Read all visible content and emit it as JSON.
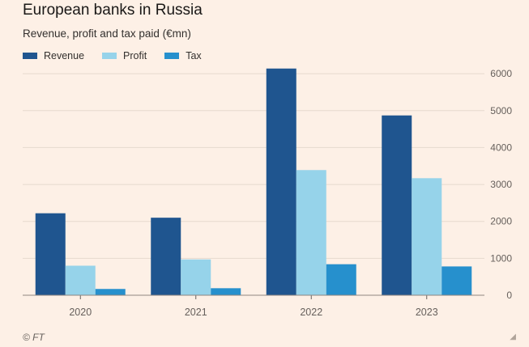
{
  "header": {
    "title": "European banks in Russia",
    "subtitle": "Revenue, profit and tax paid (€mn)"
  },
  "footer": {
    "source": "© FT"
  },
  "colors": {
    "background": "#fdf0e6",
    "grid": "#e6d9ce",
    "axis": "#66605c",
    "Revenue": "#1f558f",
    "Profit": "#96d3ea",
    "Tax": "#2690cd"
  },
  "chart_data": {
    "type": "bar",
    "categories": [
      "2020",
      "2021",
      "2022",
      "2023"
    ],
    "series": [
      {
        "name": "Revenue",
        "values": [
          2220,
          2100,
          6140,
          4870
        ]
      },
      {
        "name": "Profit",
        "values": [
          800,
          970,
          3390,
          3170
        ]
      },
      {
        "name": "Tax",
        "values": [
          170,
          190,
          840,
          780
        ]
      }
    ],
    "yticks": [
      0,
      1000,
      2000,
      3000,
      4000,
      5000,
      6000
    ],
    "ylim": [
      0,
      6200
    ],
    "grid": true,
    "legend_position": "top-left",
    "yaxis_side": "right"
  }
}
